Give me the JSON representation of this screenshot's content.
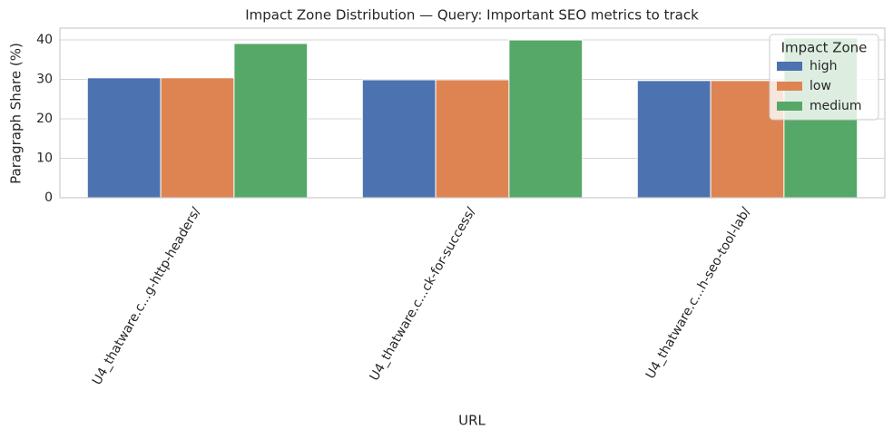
{
  "chart_data": {
    "type": "bar",
    "title": "Impact Zone Distribution — Query: Important SEO metrics to track",
    "x_label": "URL",
    "y_label": "Paragraph Share (%)",
    "categories": [
      "U4_thatware.c...g-http-headers/",
      "U4_thatware.c...ck-for-success/",
      "U4_thatware.c...h-seo-tool-lab/"
    ],
    "series": [
      {
        "name": "high",
        "color": "#4c72b0",
        "values": [
          30.4,
          29.9,
          29.7
        ]
      },
      {
        "name": "low",
        "color": "#dd8452",
        "values": [
          30.4,
          29.9,
          29.7
        ]
      },
      {
        "name": "medium",
        "color": "#55a868",
        "values": [
          39.1,
          40.0,
          40.5
        ]
      }
    ],
    "ylim": [
      0,
      43
    ],
    "yticks": [
      0,
      10,
      20,
      30,
      40
    ],
    "grid": true,
    "legend_title": "Impact Zone",
    "legend_loc": "upper right"
  }
}
